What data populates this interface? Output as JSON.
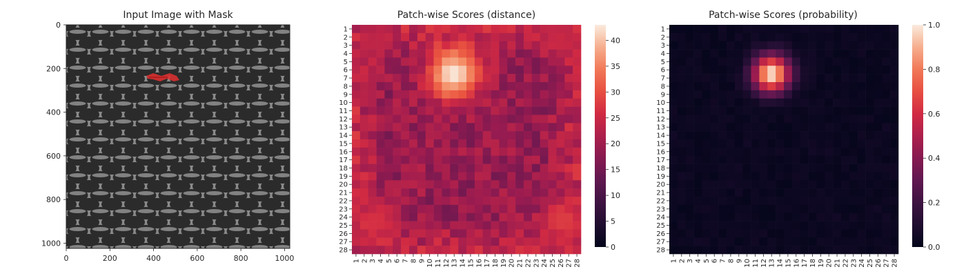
{
  "chart_data": [
    {
      "type": "image",
      "title": "Input Image with Mask",
      "x_ticks": [
        "0",
        "200",
        "400",
        "600",
        "800",
        "1000"
      ],
      "y_ticks": [
        "0",
        "200",
        "400",
        "600",
        "800",
        "1000"
      ],
      "xlim": [
        0,
        1024
      ],
      "ylim": [
        1024,
        0
      ],
      "mask": {
        "color": "#e03030",
        "x_range": [
          360,
          520
        ],
        "y_range": [
          220,
          265
        ]
      }
    },
    {
      "type": "heatmap",
      "title": "Patch-wise Scores (distance)",
      "size": 28,
      "row_labels": [
        "1",
        "2",
        "3",
        "4",
        "5",
        "6",
        "7",
        "8",
        "9",
        "10",
        "11",
        "12",
        "13",
        "14",
        "15",
        "16",
        "17",
        "18",
        "19",
        "20",
        "21",
        "22",
        "23",
        "24",
        "25",
        "26",
        "27",
        "28"
      ],
      "col_labels": [
        "1",
        "2",
        "3",
        "4",
        "5",
        "6",
        "7",
        "8",
        "9",
        "10",
        "11",
        "12",
        "13",
        "14",
        "15",
        "16",
        "17",
        "18",
        "19",
        "20",
        "21",
        "22",
        "23",
        "24",
        "25",
        "26",
        "27",
        "28"
      ],
      "colorbar": {
        "min": 0,
        "max": 43,
        "ticks": [
          "0",
          "5",
          "10",
          "15",
          "20",
          "25",
          "30",
          "35",
          "40"
        ]
      },
      "colormap": "rocket",
      "base_value": 19,
      "hotspots": [
        {
          "row": 6.5,
          "col": 13.0,
          "peak": 43,
          "radius": 2.3
        },
        {
          "row": 24.5,
          "col": 3.5,
          "peak": 27,
          "radius": 1.8
        },
        {
          "row": 24.5,
          "col": 26.0,
          "peak": 28,
          "radius": 1.8
        },
        {
          "row": 2.5,
          "col": 26.0,
          "peak": 25,
          "radius": 1.6
        },
        {
          "row": 2.5,
          "col": 3.5,
          "peak": 24,
          "radius": 1.6
        }
      ]
    },
    {
      "type": "heatmap",
      "title": "Patch-wise Scores (probability)",
      "size": 28,
      "row_labels": [
        "1",
        "2",
        "3",
        "4",
        "5",
        "6",
        "7",
        "8",
        "9",
        "10",
        "11",
        "12",
        "13",
        "14",
        "15",
        "16",
        "17",
        "18",
        "19",
        "20",
        "21",
        "22",
        "23",
        "24",
        "25",
        "26",
        "27",
        "28"
      ],
      "col_labels": [
        "1",
        "2",
        "3",
        "4",
        "5",
        "6",
        "7",
        "8",
        "9",
        "10",
        "11",
        "12",
        "13",
        "14",
        "15",
        "16",
        "17",
        "18",
        "19",
        "20",
        "21",
        "22",
        "23",
        "24",
        "25",
        "26",
        "27",
        "28"
      ],
      "colorbar": {
        "min": 0,
        "max": 1.0,
        "ticks": [
          "0.0",
          "0.2",
          "0.4",
          "0.6",
          "0.8",
          "1.0"
        ]
      },
      "colormap": "rocket",
      "base_value": 0.01,
      "hotspots": [
        {
          "row": 6.5,
          "col": 13.0,
          "peak": 1.0,
          "radius": 1.6
        }
      ]
    }
  ]
}
